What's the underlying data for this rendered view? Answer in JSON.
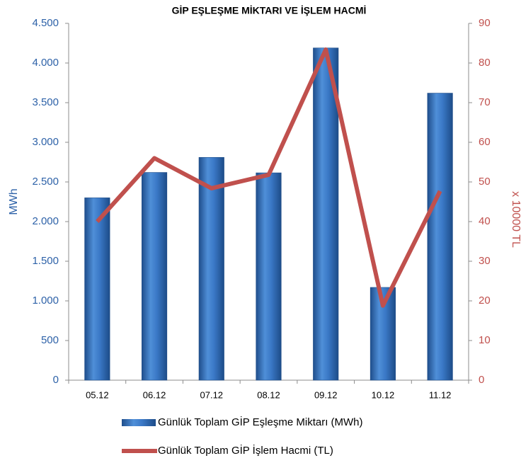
{
  "chart_data": {
    "type": "bar",
    "title": "GİP EŞLEŞME MİKTARI VE İŞLEM HACMİ",
    "y_label": "MWh",
    "y2_label": "x 10000 TL",
    "categories": [
      "05.12",
      "06.12",
      "07.12",
      "08.12",
      "09.12",
      "10.12",
      "11.12"
    ],
    "series": [
      {
        "name": "Günlük Toplam GİP Eşleşme Miktarı (MWh)",
        "type": "bar",
        "color": "#3a78c6",
        "values": [
          2300,
          2620,
          2810,
          2615,
          4190,
          1170,
          3620
        ]
      },
      {
        "name": "Günlük Toplam GİP İşlem Hacmi (TL)",
        "type": "line",
        "axis": "y2",
        "color": "#c0504d",
        "values": [
          40,
          56,
          48.4,
          51.8,
          83.4,
          18.8,
          47.7
        ]
      }
    ],
    "ylim": [
      0,
      4500
    ],
    "yticks": [
      0,
      500,
      {
        "value": 1000,
        "label": "1.000"
      },
      {
        "value": 1500,
        "label": "1.500"
      },
      {
        "value": 2000,
        "label": "2.000"
      },
      {
        "value": 2500,
        "label": "2.500"
      },
      {
        "value": 3000,
        "label": "3.000"
      },
      {
        "value": 3500,
        "label": "3.500"
      },
      {
        "value": 4000,
        "label": "4.000"
      },
      {
        "value": 4500,
        "label": "4.500"
      }
    ],
    "y2lim": [
      0,
      90
    ],
    "y2ticks": [
      0,
      10,
      20,
      30,
      40,
      50,
      60,
      70,
      80,
      90
    ],
    "grid": false
  }
}
